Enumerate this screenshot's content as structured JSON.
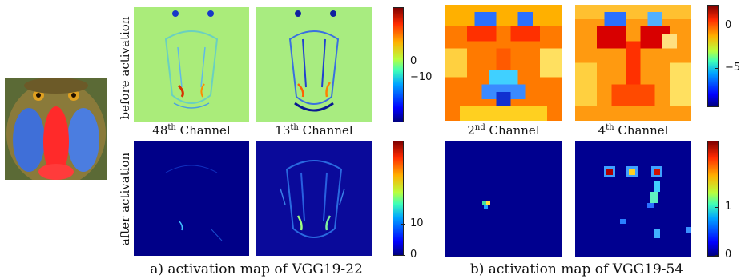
{
  "row_labels": {
    "top": "before activation",
    "bottom": "after activation"
  },
  "captions": {
    "left": "a) activation map of  VGG19-22",
    "right": "b) activation map of  VGG19-54"
  },
  "channel_labels": {
    "p1": {
      "num": "48",
      "sup": "th",
      "text": " Channel"
    },
    "p2": {
      "num": "13",
      "sup": "th",
      "text": " Channel"
    },
    "p3": {
      "num": "2",
      "sup": "nd",
      "text": " Channel"
    },
    "p4": {
      "num": "4",
      "sup": "th",
      "text": " Channel"
    }
  },
  "colorbars": {
    "left_top": [
      "0",
      "−10"
    ],
    "left_bottom": [
      "10",
      "0"
    ],
    "right_top": [
      "0",
      "−5"
    ],
    "right_bottom": [
      "1",
      "0"
    ]
  }
}
